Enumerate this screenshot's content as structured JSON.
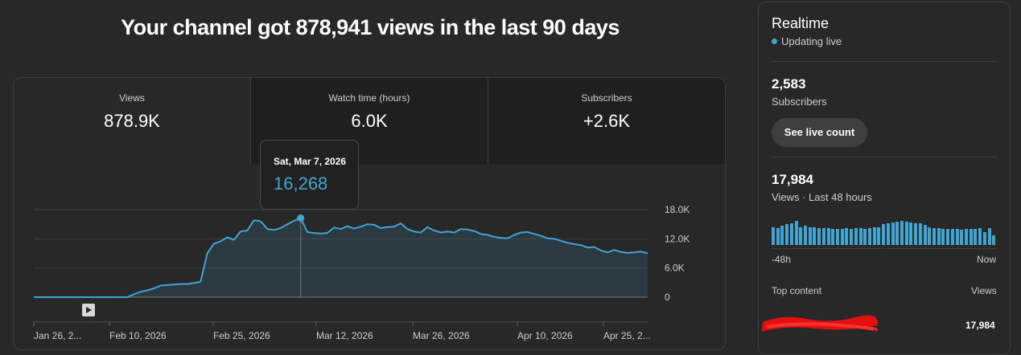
{
  "headline": "Your channel got 878,941 views in the last 90 days",
  "metrics": [
    {
      "label": "Views",
      "value": "878.9K"
    },
    {
      "label": "Watch time (hours)",
      "value": "6.0K"
    },
    {
      "label": "Subscribers",
      "value": "+2.6K"
    }
  ],
  "tooltip": {
    "date": "Sat, Mar 7, 2026",
    "value": "16,268"
  },
  "chart_data": {
    "type": "area",
    "x_tick_labels": [
      "Jan 26, 2...",
      "Feb 10, 2026",
      "Feb 25, 2026",
      "Mar 12, 2026",
      "Mar 26, 2026",
      "Apr 10, 2026",
      "Apr 25, 2..."
    ],
    "y_tick_labels": [
      "18.0K",
      "12.0K",
      "6.0K",
      "0"
    ],
    "ylim": [
      0,
      18000
    ],
    "grid": true,
    "color": "#41a5d3",
    "highlight_index": 40,
    "values": [
      0,
      0,
      0,
      0,
      0,
      0,
      0,
      0,
      0,
      0,
      0,
      0,
      0,
      0,
      0,
      600,
      1100,
      1400,
      1800,
      2400,
      2500,
      2600,
      2700,
      2700,
      2900,
      3200,
      9000,
      11000,
      11500,
      12300,
      11800,
      13500,
      13700,
      15800,
      15600,
      14000,
      13800,
      14200,
      15000,
      15700,
      16268,
      13400,
      13200,
      13100,
      13200,
      14300,
      14000,
      14600,
      14100,
      14500,
      15000,
      14900,
      14200,
      14400,
      14500,
      15200,
      14000,
      13500,
      13300,
      14400,
      13700,
      13300,
      13500,
      13300,
      14000,
      13900,
      13600,
      13000,
      12800,
      12400,
      12200,
      12100,
      12800,
      13300,
      13400,
      13000,
      12600,
      12100,
      12000,
      11600,
      11200,
      10900,
      10700,
      10200,
      10300,
      9600,
      9200,
      9700,
      9300,
      9100,
      9200,
      9400,
      9000
    ],
    "series_points_note": ""
  },
  "realtime": {
    "title": "Realtime",
    "status": "Updating live",
    "subscribers_value": "2,583",
    "subscribers_label": "Subscribers",
    "live_button": "See live count",
    "views_value": "17,984",
    "views_label": "Views · Last 48 hours",
    "axis_start": "-48h",
    "axis_end": "Now",
    "hourly_values": [
      21,
      20,
      22,
      24,
      25,
      28,
      21,
      22,
      21,
      21,
      20,
      20,
      20,
      19,
      19,
      19,
      20,
      19,
      20,
      20,
      19,
      20,
      21,
      21,
      24,
      25,
      26,
      27,
      28,
      27,
      26,
      25,
      25,
      23,
      21,
      20,
      20,
      19,
      19,
      19,
      19,
      18,
      19,
      19,
      19,
      20,
      15,
      20,
      11
    ],
    "top_content_label": "Top content",
    "top_content_col": "Views",
    "top_item_views": "17,984"
  }
}
